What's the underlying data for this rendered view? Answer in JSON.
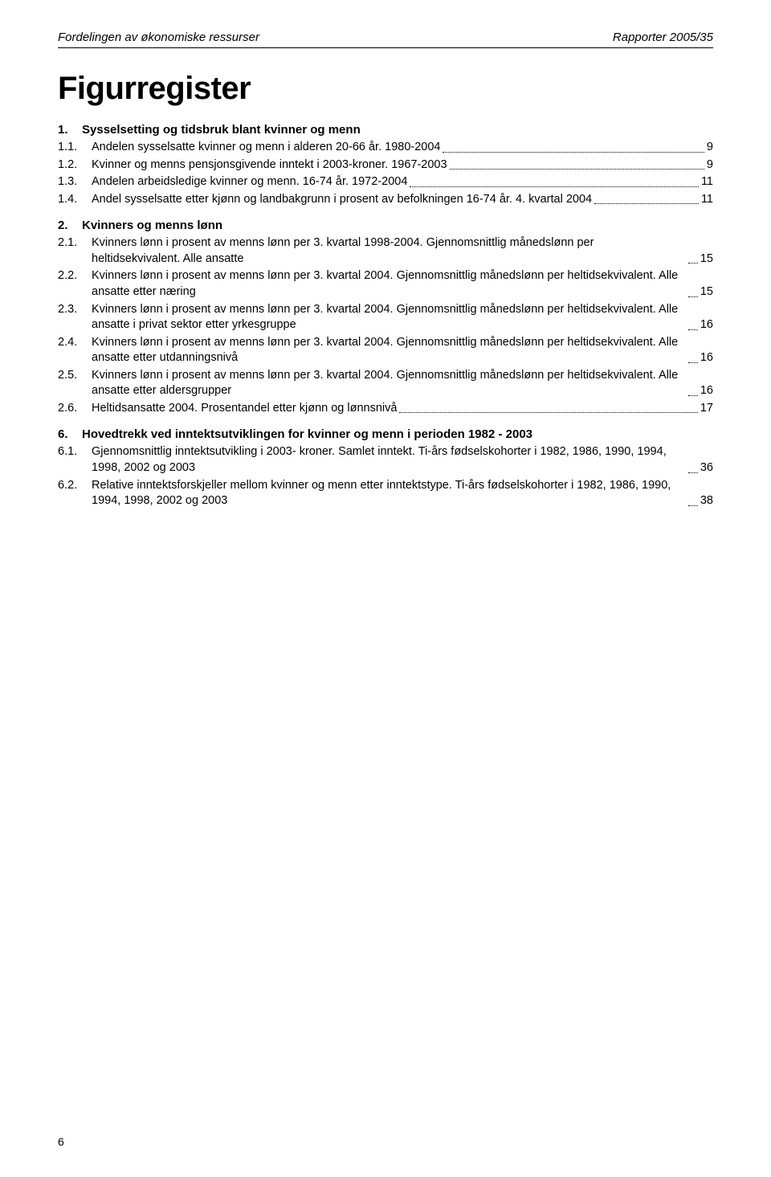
{
  "running_head": {
    "left": "Fordelingen av økonomiske ressurser",
    "right": "Rapporter 2005/35"
  },
  "title": "Figurregister",
  "sections": [
    {
      "num": "1.",
      "title": "Sysselsetting og tidsbruk blant kvinner og menn",
      "entries": [
        {
          "num": "1.1.",
          "text": "Andelen sysselsatte kvinner og menn i alderen 20-66 år. 1980-2004",
          "page": "9"
        },
        {
          "num": "1.2.",
          "text": "Kvinner og menns pensjonsgivende inntekt i 2003-kroner. 1967-2003",
          "page": "9"
        },
        {
          "num": "1.3.",
          "text": "Andelen arbeidsledige kvinner og menn. 16-74 år. 1972-2004",
          "page": "11"
        },
        {
          "num": "1.4.",
          "text": "Andel sysselsatte etter kjønn og landbakgrunn i prosent av befolkningen 16-74 år. 4. kvartal 2004",
          "page": "11"
        }
      ]
    },
    {
      "num": "2.",
      "title": "Kvinners og menns lønn",
      "entries": [
        {
          "num": "2.1.",
          "text": "Kvinners lønn i prosent av menns lønn per 3. kvartal 1998-2004. Gjennomsnittlig månedslønn per heltidsekvivalent. Alle ansatte",
          "page": "15"
        },
        {
          "num": "2.2.",
          "text": "Kvinners lønn i prosent av menns lønn per 3. kvartal 2004. Gjennomsnittlig månedslønn per heltidsekvivalent. Alle ansatte etter næring",
          "page": "15"
        },
        {
          "num": "2.3.",
          "text": "Kvinners lønn i prosent av menns lønn per 3. kvartal 2004. Gjennomsnittlig månedslønn per heltidsekvivalent. Alle ansatte i privat sektor etter yrkesgruppe",
          "page": "16"
        },
        {
          "num": "2.4.",
          "text": "Kvinners lønn i prosent av menns lønn per 3. kvartal 2004. Gjennomsnittlig månedslønn per heltidsekvivalent. Alle ansatte etter utdanningsnivå",
          "page": "16"
        },
        {
          "num": "2.5.",
          "text": "Kvinners lønn i prosent av menns lønn per 3. kvartal 2004. Gjennomsnittlig månedslønn per heltidsekvivalent. Alle ansatte etter aldersgrupper",
          "page": "16"
        },
        {
          "num": "2.6.",
          "text": "Heltidsansatte 2004. Prosentandel etter kjønn og lønnsnivå",
          "page": "17"
        }
      ]
    },
    {
      "num": "6.",
      "title": "Hovedtrekk ved inntektsutviklingen for kvinner og menn i perioden 1982 - 2003",
      "entries": [
        {
          "num": "6.1.",
          "text": "Gjennomsnittlig inntektsutvikling i 2003- kroner. Samlet inntekt. Ti-års fødselskohorter i 1982, 1986, 1990, 1994, 1998, 2002 og 2003",
          "page": "36"
        },
        {
          "num": "6.2.",
          "text": "Relative inntektsforskjeller mellom kvinner og menn etter inntektstype. Ti-års fødselskohorter i 1982, 1986, 1990, 1994, 1998, 2002 og 2003",
          "page": "38"
        }
      ]
    }
  ],
  "page_number": "6"
}
